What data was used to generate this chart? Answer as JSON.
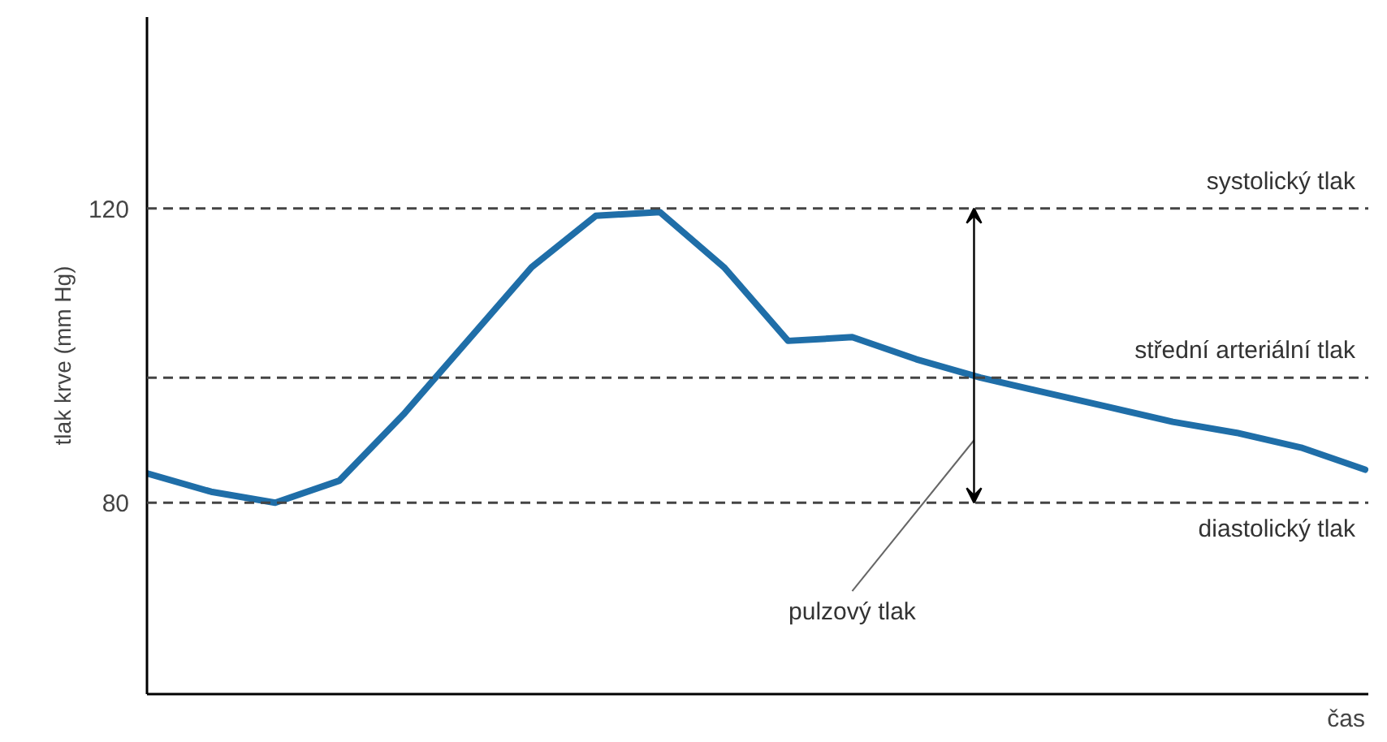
{
  "chart_data": {
    "type": "line",
    "xlabel": "čas",
    "ylabel": "tlak krve (mm Hg)",
    "categories": [
      null,
      null,
      null,
      null,
      null,
      null,
      null,
      null,
      null,
      null,
      null,
      null,
      null,
      null,
      null,
      null,
      null,
      null,
      null,
      null
    ],
    "series": [
      {
        "color": "#1f6ea8",
        "values": [
          84,
          81.5,
          80,
          83,
          92,
          102,
          112,
          119,
          119.5,
          112,
          102,
          102.5,
          99.5,
          97,
          95,
          93,
          91,
          89.5,
          87.5,
          84.5
        ]
      }
    ],
    "ylim": [
      54,
      146
    ],
    "yticks": [
      80,
      120
    ],
    "ref_lines": [
      {
        "axis": "y",
        "value": 120,
        "label": "systolický tlak",
        "color": "#444444",
        "line_style": "dashed"
      },
      {
        "axis": "y",
        "value": 97,
        "label": "střední arteriální tlak",
        "color": "#444444",
        "line_style": "dashed"
      },
      {
        "axis": "y",
        "value": 80,
        "label": "diastolický tlak",
        "color": "#444444",
        "line_style": "dashed"
      }
    ],
    "annotations": [
      "pulzový tlak"
    ],
    "grid": false,
    "marker": "none",
    "line_style": "solid"
  }
}
